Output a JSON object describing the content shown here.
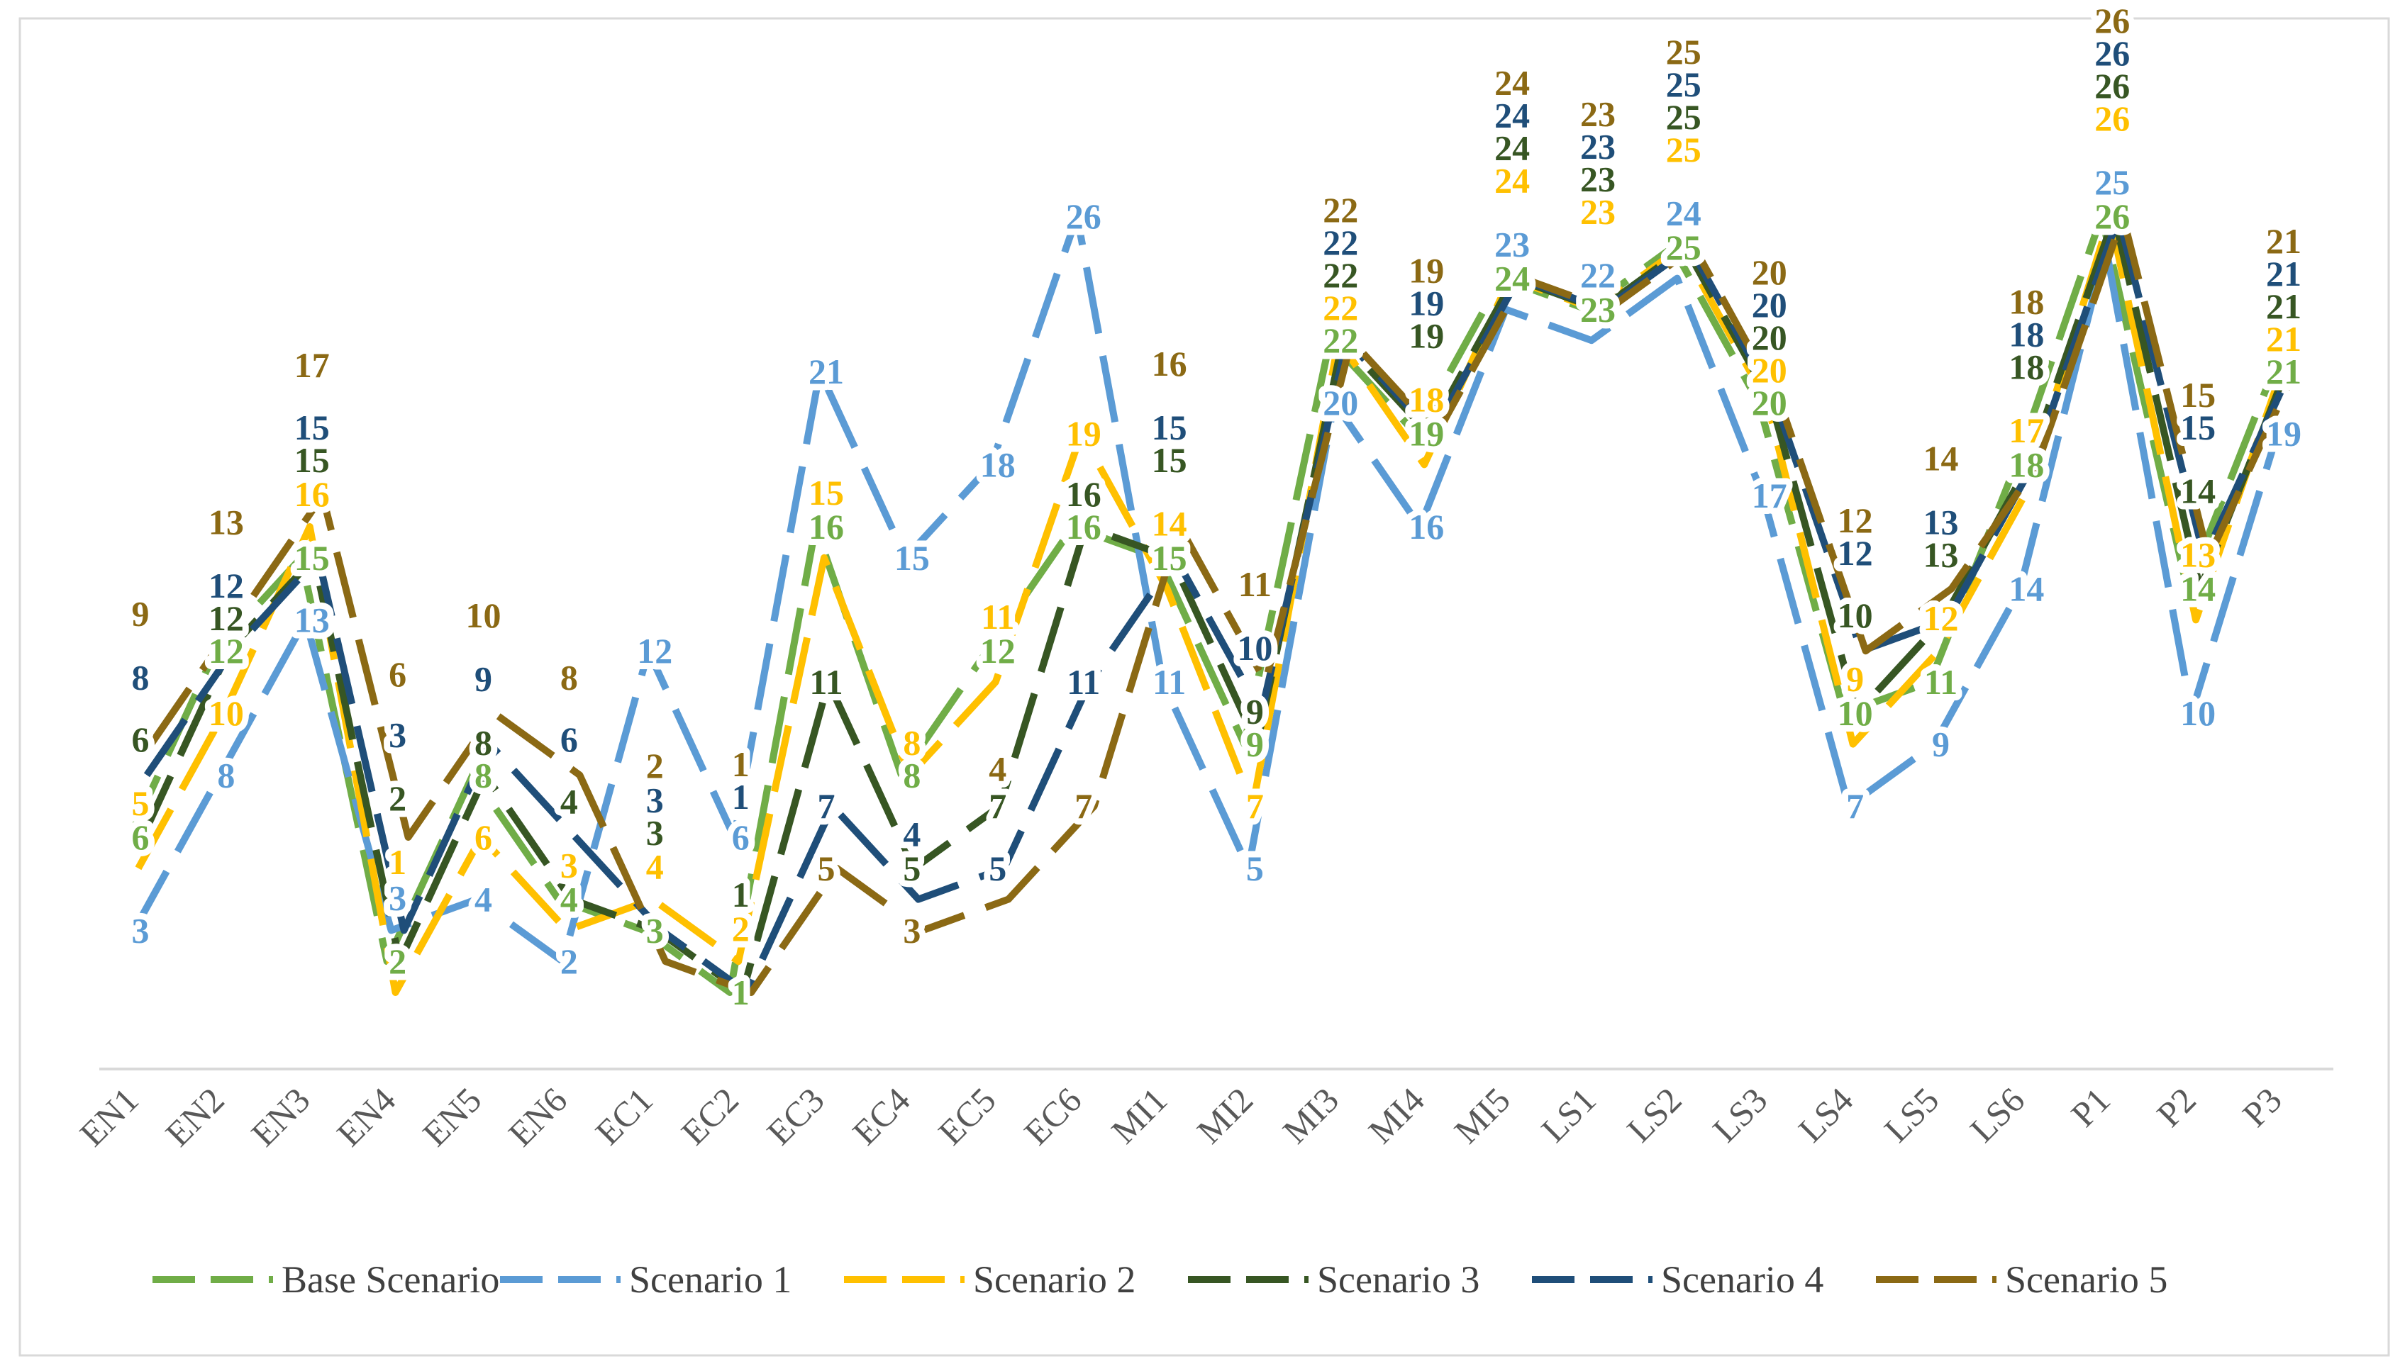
{
  "chart_data": {
    "type": "line",
    "title": "",
    "xlabel": "",
    "ylabel": "",
    "ylim": [
      1,
      26
    ],
    "categories": [
      "EN1",
      "EN2",
      "EN3",
      "EN4",
      "EN5",
      "EN6",
      "EC1",
      "EC2",
      "EC3",
      "EC4",
      "EC5",
      "EC6",
      "MI1",
      "MI2",
      "MI3",
      "MI4",
      "MI5",
      "LS1",
      "LS2",
      "LS3",
      "LS4",
      "LS5",
      "LS6",
      "P1",
      "P2",
      "P3"
    ],
    "series": [
      {
        "name": "Base Scenario",
        "color": "#70AD47",
        "values": [
          6,
          12,
          15,
          2,
          8,
          4,
          3,
          1,
          16,
          8,
          12,
          16,
          15,
          9,
          22,
          19,
          24,
          23,
          25,
          20,
          10,
          11,
          18,
          26,
          14,
          21
        ]
      },
      {
        "name": "Scenario 1",
        "color": "#5B9BD5",
        "values": [
          3,
          8,
          13,
          3,
          4,
          2,
          12,
          6,
          21,
          15,
          18,
          26,
          11,
          5,
          20,
          16,
          23,
          22,
          24,
          17,
          7,
          9,
          14,
          25,
          10,
          19
        ]
      },
      {
        "name": "Scenario 2",
        "color": "#FFC000",
        "values": [
          5,
          10,
          16,
          1,
          6,
          3,
          4,
          2,
          15,
          8,
          11,
          19,
          14,
          7,
          22,
          18,
          24,
          23,
          25,
          20,
          9,
          12,
          17,
          26,
          13,
          21
        ]
      },
      {
        "name": "Scenario 3",
        "color": "#375623",
        "values": [
          6,
          12,
          15,
          2,
          8,
          4,
          3,
          1,
          11,
          5,
          7,
          16,
          15,
          9,
          22,
          19,
          24,
          23,
          25,
          20,
          10,
          13,
          18,
          26,
          14,
          21
        ]
      },
      {
        "name": "Scenario 4",
        "color": "#1F4E79",
        "values": [
          8,
          12,
          15,
          3,
          9,
          6,
          3,
          1,
          7,
          4,
          5,
          11,
          15,
          10,
          22,
          19,
          24,
          23,
          25,
          20,
          12,
          13,
          18,
          26,
          15,
          21
        ]
      },
      {
        "name": "Scenario 5",
        "color": "#8B6914",
        "values": [
          9,
          13,
          17,
          6,
          10,
          8,
          2,
          1,
          5,
          3,
          4,
          7,
          16,
          11,
          22,
          19,
          24,
          23,
          25,
          20,
          12,
          14,
          18,
          26,
          15,
          21
        ]
      }
    ],
    "legend_position": "bottom",
    "grid": false
  },
  "legend": {
    "labels": [
      "Base Scenario",
      "Scenario 1",
      "Scenario 2",
      "Scenario 3",
      "Scenario 4",
      "Scenario 5"
    ]
  }
}
